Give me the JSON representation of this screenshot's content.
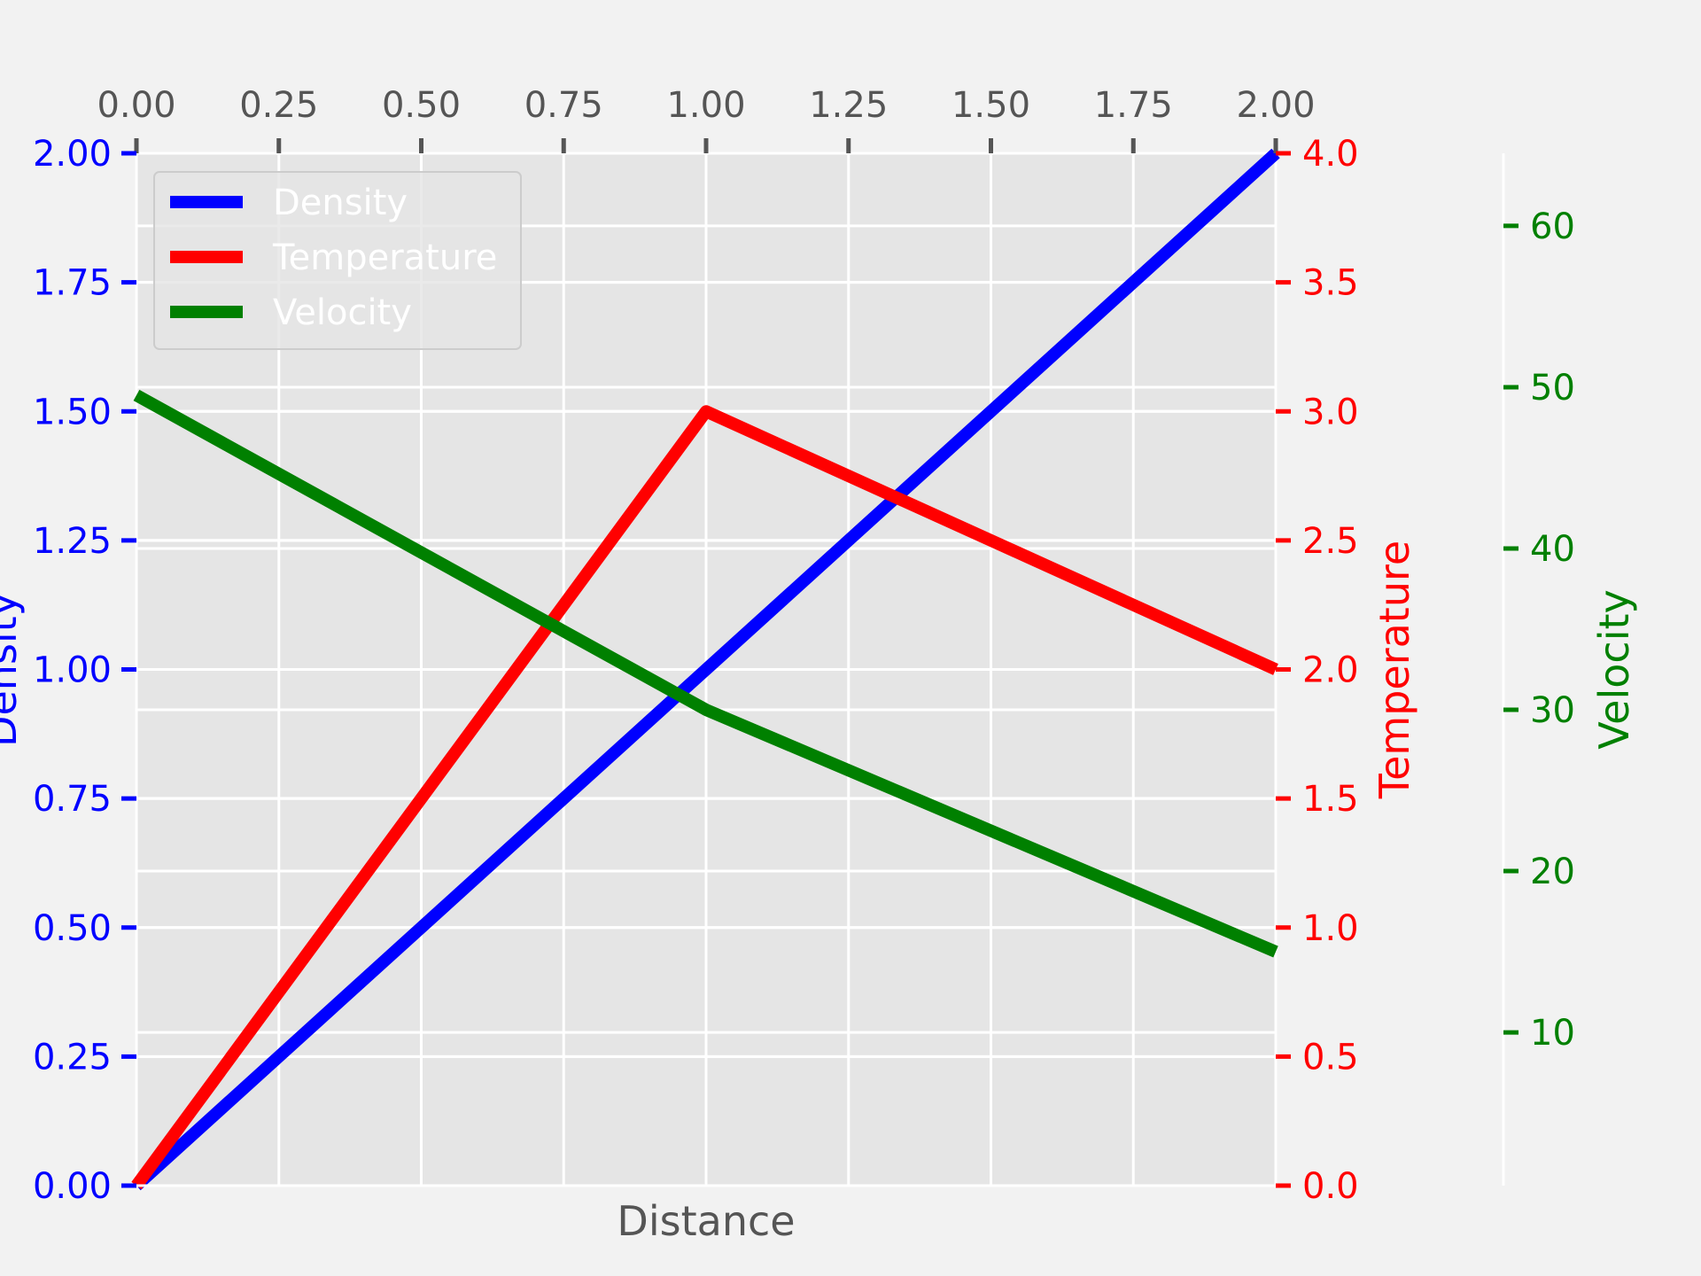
{
  "chart_data": {
    "type": "line",
    "xlabel": "Distance",
    "x_ticks": [
      "0.00",
      "0.25",
      "0.50",
      "0.75",
      "1.00",
      "1.25",
      "1.50",
      "1.75",
      "2.00"
    ],
    "xlim": [
      0,
      2
    ],
    "grid": true,
    "legend_position": "top-left",
    "axes": [
      {
        "id": "density",
        "label": "Density",
        "side": "left",
        "color": "#0000ff",
        "ylim": [
          0,
          2
        ],
        "ticks": [
          "0.00",
          "0.25",
          "0.50",
          "0.75",
          "1.00",
          "1.25",
          "1.50",
          "1.75",
          "2.00"
        ]
      },
      {
        "id": "temperature",
        "label": "Temperature",
        "side": "right",
        "color": "#ff0000",
        "ylim": [
          0,
          4
        ],
        "ticks": [
          "0.0",
          "0.5",
          "1.0",
          "1.5",
          "2.0",
          "2.5",
          "3.0",
          "3.5",
          "4.0"
        ]
      },
      {
        "id": "velocity",
        "label": "Velocity",
        "side": "right-outer",
        "color": "#008000",
        "ylim": [
          0.5,
          64.5
        ],
        "ticks": [
          "10",
          "20",
          "30",
          "40",
          "50",
          "60"
        ]
      }
    ],
    "series": [
      {
        "name": "Density",
        "axis": "density",
        "color": "#0000ff",
        "x": [
          0,
          1,
          2
        ],
        "y": [
          0,
          1,
          2
        ]
      },
      {
        "name": "Temperature",
        "axis": "temperature",
        "color": "#ff0000",
        "x": [
          0,
          1,
          2
        ],
        "y": [
          0,
          3,
          2
        ]
      },
      {
        "name": "Velocity",
        "axis": "velocity",
        "color": "#008000",
        "x": [
          0,
          1,
          2
        ],
        "y": [
          49.5,
          30,
          15
        ]
      }
    ]
  }
}
